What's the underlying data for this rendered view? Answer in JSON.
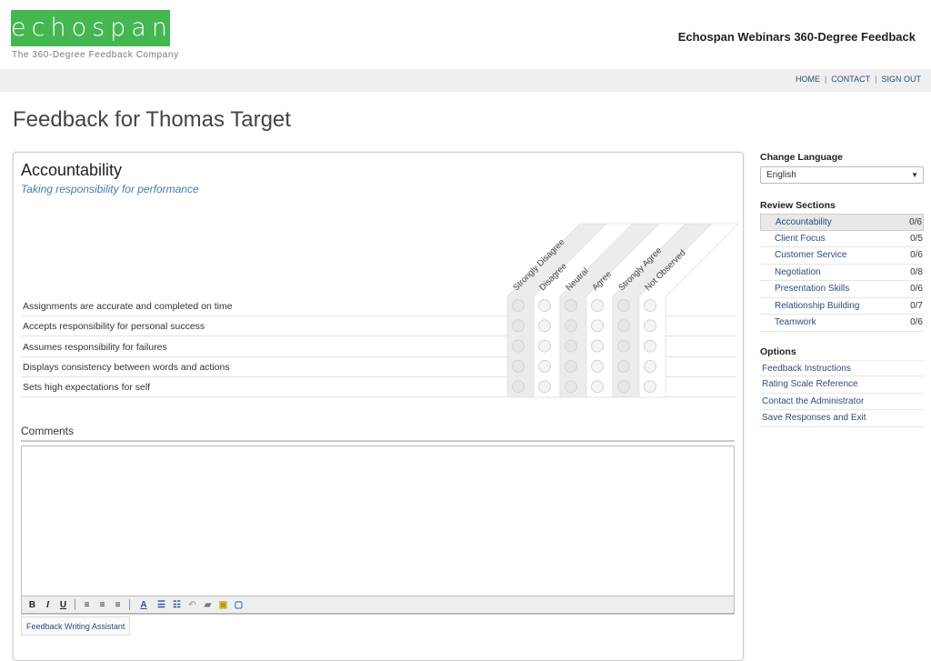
{
  "header": {
    "logo": "echospan",
    "tagline": "The 360-Degree Feedback Company",
    "app_title": "Echospan Webinars 360-Degree Feedback"
  },
  "nav": [
    "HOME",
    "CONTACT",
    "SIGN OUT"
  ],
  "page_title": "Feedback for Thomas Target",
  "section": {
    "title": "Accountability",
    "subtitle": "Taking responsibility for performance",
    "scale": [
      "Strongly Disagree",
      "Disagree",
      "Neutral",
      "Agree",
      "Strongly Agree",
      "Not Observed"
    ],
    "items": [
      "Assignments are accurate and completed on time",
      "Accepts responsibility for personal success",
      "Assumes responsibility for failures",
      "Displays consistency between words and actions",
      "Sets high expectations for self"
    ]
  },
  "comments": {
    "label": "Comments",
    "value": ""
  },
  "toolbar": [
    "B",
    "I",
    "U",
    "align-left",
    "align-center",
    "align-right",
    "A",
    "bullet-list",
    "numbered-list",
    "undo",
    "print",
    "paste",
    "spellcheck"
  ],
  "fwa_label": "Feedback Writing Assistant",
  "sidebar": {
    "language_label": "Change Language",
    "language": "English",
    "review_label": "Review Sections",
    "sections": [
      {
        "label": "Accountability",
        "count": "0/6"
      },
      {
        "label": "Client Focus",
        "count": "0/5"
      },
      {
        "label": "Customer Service",
        "count": "0/6"
      },
      {
        "label": "Negotiation",
        "count": "0/8"
      },
      {
        "label": "Presentation Skills",
        "count": "0/6"
      },
      {
        "label": "Relationship Building",
        "count": "0/7"
      },
      {
        "label": "Teamwork",
        "count": "0/6"
      }
    ],
    "options_label": "Options",
    "options": [
      "Feedback Instructions",
      "Rating Scale Reference",
      "Contact the Administrator",
      "Save Responses and Exit"
    ]
  },
  "colors": {
    "brand": "#44b751",
    "link": "#2a4d7a",
    "stripe": "#ececec"
  }
}
